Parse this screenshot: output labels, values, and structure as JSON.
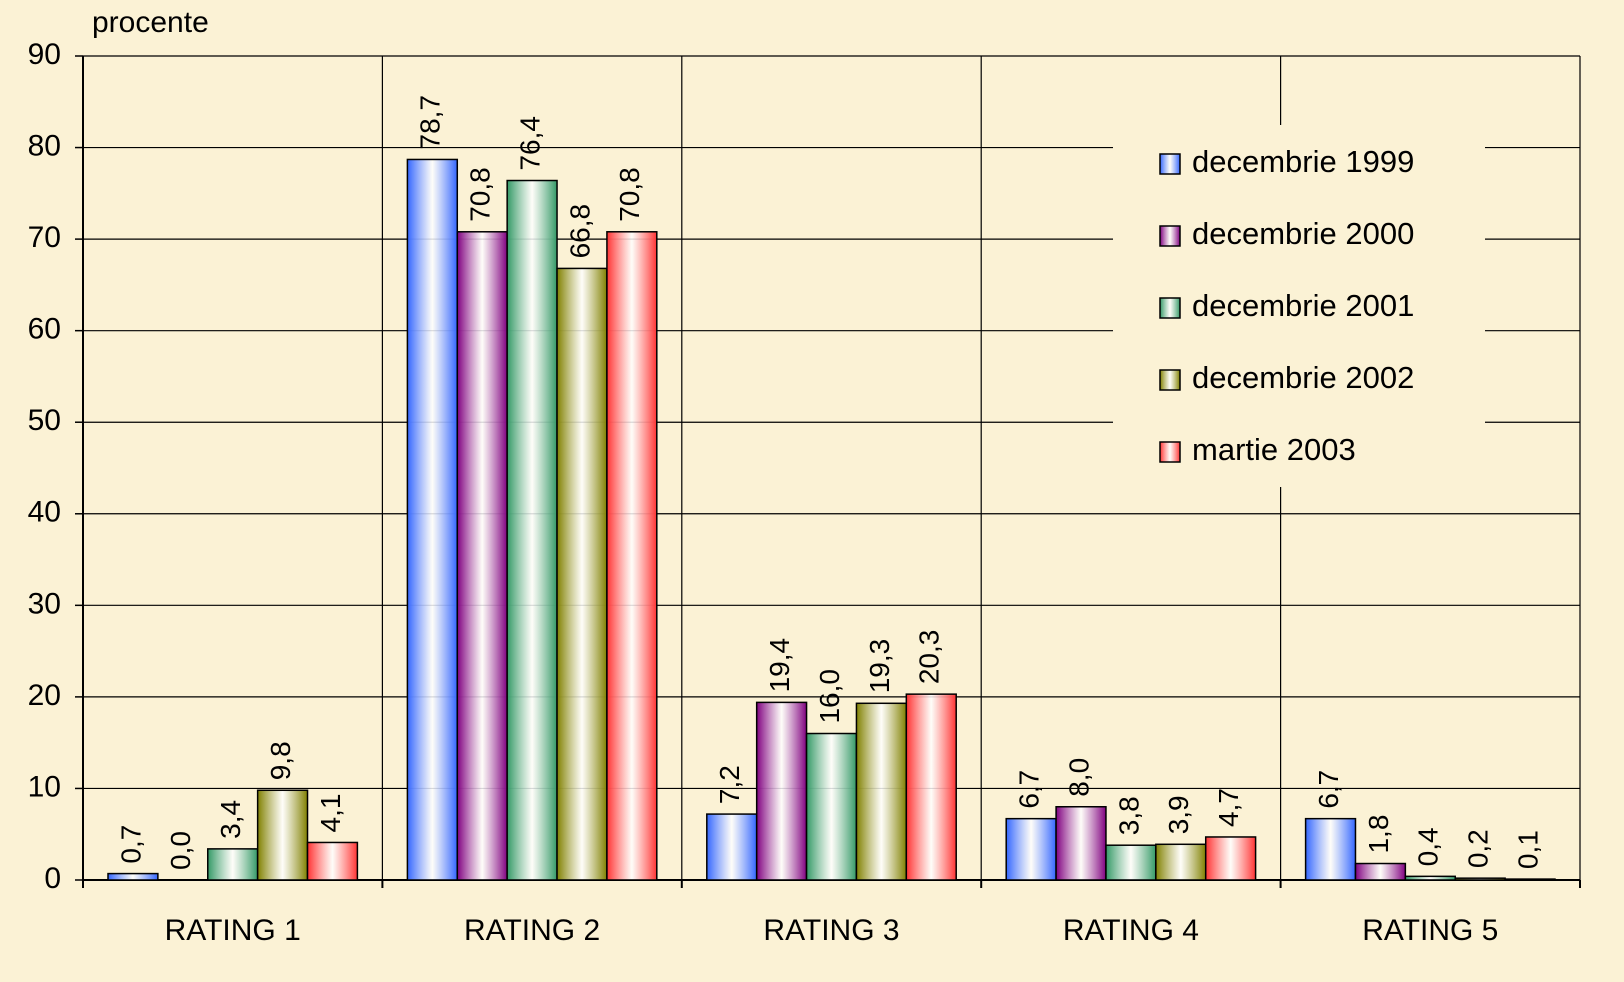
{
  "chart_data": {
    "type": "bar",
    "y_label": "procente",
    "categories": [
      "RATING 1",
      "RATING 2",
      "RATING 3",
      "RATING 4",
      "RATING 5"
    ],
    "series": [
      {
        "name": "decembrie 1999",
        "color": "#3366ff",
        "values": [
          0.7,
          78.7,
          7.2,
          6.7,
          6.7
        ],
        "value_labels": [
          "0,7",
          "78,7",
          "7,2",
          "6,7",
          "6,7"
        ]
      },
      {
        "name": "decembrie 2000",
        "color": "#800080",
        "values": [
          0.0,
          70.8,
          19.4,
          8.0,
          1.8
        ],
        "value_labels": [
          "0,0",
          "70,8",
          "19,4",
          "8,0",
          "1,8"
        ]
      },
      {
        "name": "decembrie 2001",
        "color": "#339966",
        "values": [
          3.4,
          76.4,
          16.0,
          3.8,
          0.4
        ],
        "value_labels": [
          "3,4",
          "76,4",
          "16,0",
          "3,8",
          "0,4"
        ]
      },
      {
        "name": "decembrie 2002",
        "color": "#808000",
        "values": [
          9.8,
          66.8,
          19.3,
          3.9,
          0.2
        ],
        "value_labels": [
          "9,8",
          "66,8",
          "19,3",
          "3,9",
          "0,2"
        ]
      },
      {
        "name": "martie 2003",
        "color": "#ff3333",
        "values": [
          4.1,
          70.8,
          20.3,
          4.7,
          0.1
        ],
        "value_labels": [
          "4,1",
          "70,8",
          "20,3",
          "4,7",
          "0,1"
        ]
      }
    ],
    "ylim": [
      0,
      90
    ],
    "yticks": [
      0,
      10,
      20,
      30,
      40,
      50,
      60,
      70,
      80,
      90
    ],
    "grid": true,
    "legend": "top-right"
  }
}
